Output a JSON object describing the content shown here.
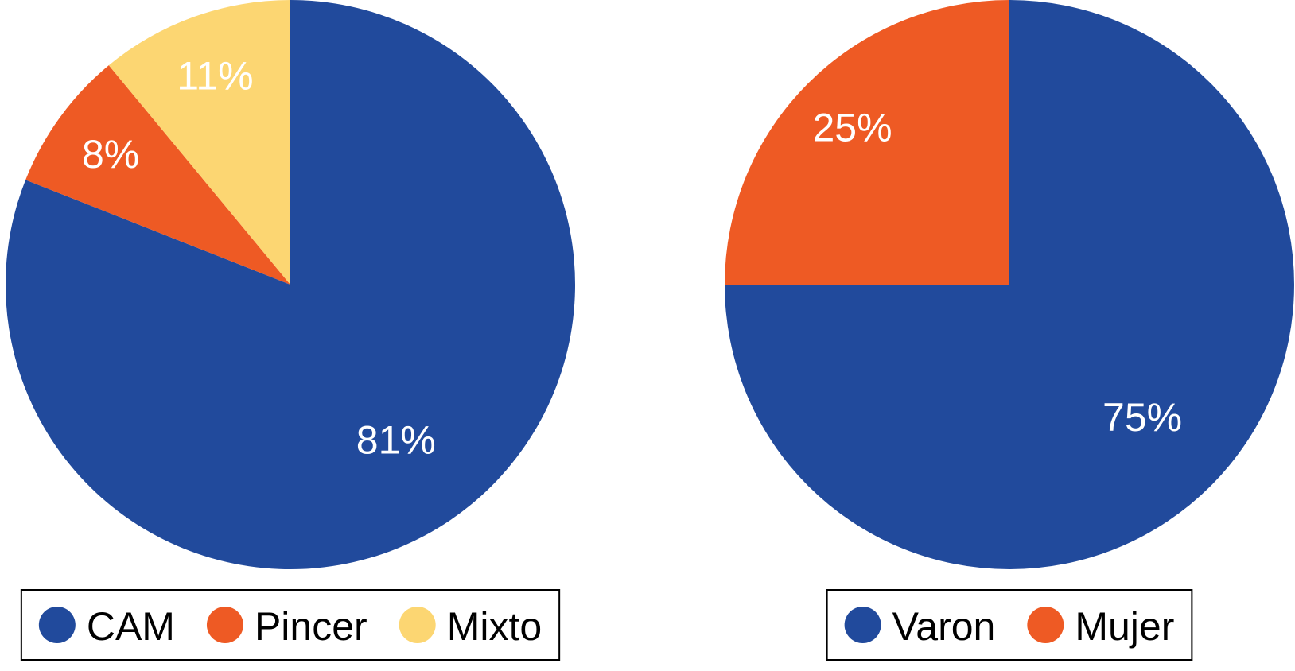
{
  "chart_data": [
    {
      "type": "pie",
      "categories": [
        "CAM",
        "Pincer",
        "Mixto"
      ],
      "values": [
        81,
        8,
        11
      ],
      "value_labels": [
        "81%",
        "8%",
        "11%"
      ],
      "colors": [
        "#214a9c",
        "#ee5a24",
        "#fcd672"
      ],
      "legend": "bottom"
    },
    {
      "type": "pie",
      "categories": [
        "Varon",
        "Mujer"
      ],
      "values": [
        75,
        25
      ],
      "value_labels": [
        "75%",
        "25%"
      ],
      "colors": [
        "#214a9c",
        "#ee5a24"
      ],
      "legend": "bottom"
    }
  ]
}
